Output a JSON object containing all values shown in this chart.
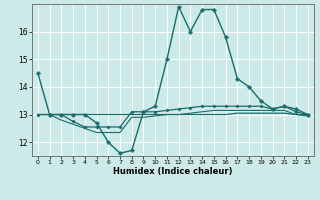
{
  "title": "",
  "xlabel": "Humidex (Indice chaleur)",
  "background_color": "#cceae8",
  "grid_color": "#ffffff",
  "line_color": "#1a6b6b",
  "xlim": [
    -0.5,
    23.5
  ],
  "ylim": [
    11.5,
    17.0
  ],
  "yticks": [
    12,
    13,
    14,
    15,
    16
  ],
  "xticks": [
    0,
    1,
    2,
    3,
    4,
    5,
    6,
    7,
    8,
    9,
    10,
    11,
    12,
    13,
    14,
    15,
    16,
    17,
    18,
    19,
    20,
    21,
    22,
    23
  ],
  "series": [
    {
      "x": [
        0,
        1,
        2,
        3,
        4,
        5,
        6,
        7,
        8,
        9,
        10,
        11,
        12,
        13,
        14,
        15,
        16,
        17,
        18,
        19,
        20,
        21,
        22,
        23
      ],
      "y": [
        14.5,
        13.0,
        13.0,
        13.0,
        13.0,
        12.7,
        12.0,
        11.6,
        11.7,
        13.1,
        13.3,
        15.0,
        16.9,
        16.0,
        16.8,
        16.8,
        15.8,
        14.3,
        14.0,
        13.5,
        13.2,
        13.3,
        13.2,
        13.0
      ],
      "marker": "P",
      "markersize": 2.5,
      "lw": 1.0
    },
    {
      "x": [
        0,
        1,
        2,
        3,
        4,
        5,
        6,
        7,
        8,
        9,
        10,
        11,
        12,
        13,
        14,
        15,
        16,
        17,
        18,
        19,
        20,
        21,
        22,
        23
      ],
      "y": [
        13.0,
        13.0,
        13.0,
        12.75,
        12.55,
        12.55,
        12.55,
        12.55,
        13.1,
        13.1,
        13.1,
        13.15,
        13.2,
        13.25,
        13.3,
        13.3,
        13.3,
        13.3,
        13.3,
        13.3,
        13.2,
        13.3,
        13.1,
        13.0
      ],
      "marker": "P",
      "markersize": 2.0,
      "lw": 0.9
    },
    {
      "x": [
        0,
        1,
        2,
        3,
        4,
        5,
        6,
        7,
        8,
        9,
        10,
        11,
        12,
        13,
        14,
        15,
        16,
        17,
        18,
        19,
        20,
        21,
        22,
        23
      ],
      "y": [
        13.0,
        13.0,
        13.0,
        13.0,
        13.0,
        13.0,
        13.0,
        13.0,
        13.0,
        13.0,
        13.0,
        13.0,
        13.0,
        13.0,
        13.0,
        13.0,
        13.0,
        13.05,
        13.05,
        13.05,
        13.05,
        13.05,
        13.0,
        13.0
      ],
      "marker": null,
      "markersize": 0,
      "lw": 0.9
    },
    {
      "x": [
        0,
        1,
        2,
        3,
        4,
        5,
        6,
        7,
        8,
        9,
        10,
        11,
        12,
        13,
        14,
        15,
        16,
        17,
        18,
        19,
        20,
        21,
        22,
        23
      ],
      "y": [
        13.0,
        13.0,
        12.8,
        12.65,
        12.5,
        12.35,
        12.35,
        12.35,
        12.9,
        12.9,
        12.95,
        13.0,
        13.0,
        13.05,
        13.1,
        13.15,
        13.15,
        13.15,
        13.15,
        13.15,
        13.15,
        13.15,
        13.0,
        12.95
      ],
      "marker": null,
      "markersize": 0,
      "lw": 0.8
    }
  ]
}
